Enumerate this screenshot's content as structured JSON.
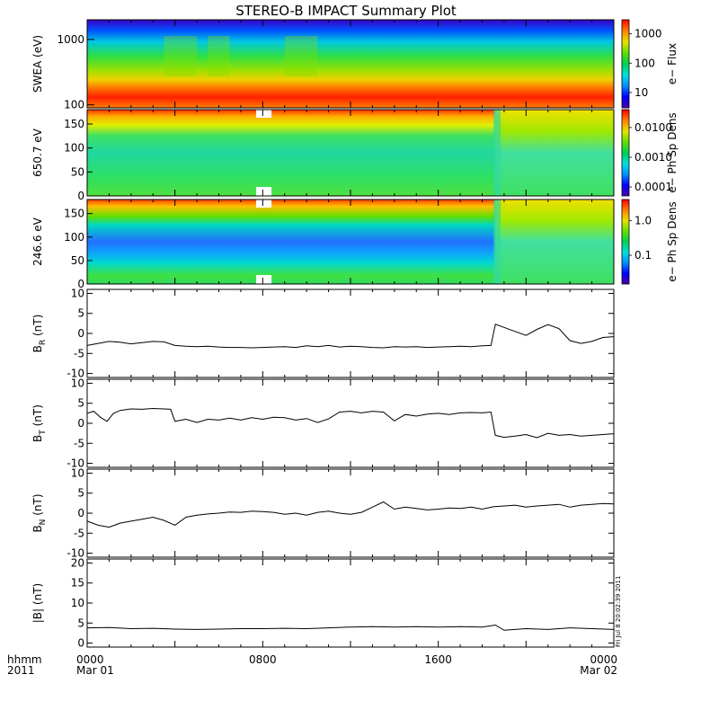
{
  "title": "STEREO-B IMPACT Summary Plot",
  "colors": {
    "axis": "#000000",
    "trace": "#000000",
    "background": "#ffffff"
  },
  "footer": {
    "left_line1": "hhmm",
    "left_line2": "2011",
    "x_ticks": [
      {
        "label": "0000",
        "sub": "Mar 01",
        "hour": 0
      },
      {
        "label": "0800",
        "sub": "",
        "hour": 8
      },
      {
        "label": "1600",
        "sub": "",
        "hour": 16
      },
      {
        "label": "0000",
        "sub": "Mar 02",
        "hour": 24
      }
    ]
  },
  "timestamp": "Fri Jul 8 20:02:39 2011",
  "chart_data": [
    {
      "type": "heatmap",
      "name": "swea",
      "ylabel": "SWEA (eV)",
      "yscale": "log",
      "ylim": [
        90,
        2000
      ],
      "y_ticks": [
        "100",
        "1000"
      ],
      "colorbar_label": "e− Flux",
      "colorbar_ticks": [
        "10",
        "100",
        "1000"
      ],
      "colorbar_scale": "log",
      "colorbar_range": [
        3,
        3000
      ]
    },
    {
      "type": "heatmap",
      "name": "pad650",
      "ylabel": "650.7 eV",
      "ylim": [
        0,
        180
      ],
      "y_ticks": [
        "0",
        "50",
        "100",
        "150"
      ],
      "colorbar_label": "e− Ph Sp Dens",
      "colorbar_ticks": [
        "0.0001",
        "0.0010",
        "0.0100"
      ],
      "colorbar_scale": "log",
      "colorbar_range": [
        5e-05,
        0.04
      ],
      "data_gaps_hours": [
        [
          7.7,
          8.4
        ]
      ],
      "transition_hour": 18.6
    },
    {
      "type": "heatmap",
      "name": "pad246",
      "ylabel": "246.6 eV",
      "ylim": [
        0,
        180
      ],
      "y_ticks": [
        "0",
        "50",
        "100",
        "150"
      ],
      "colorbar_label": "e− Ph Sp Dens",
      "colorbar_ticks": [
        "0.1",
        "1.0"
      ],
      "colorbar_scale": "log",
      "colorbar_range": [
        0.015,
        4
      ],
      "data_gaps_hours": [
        [
          7.7,
          8.4
        ]
      ],
      "transition_hour": 18.6
    },
    {
      "type": "line",
      "name": "br",
      "ylabel_main": "B",
      "ylabel_sub": "R",
      "ylabel_unit": " (nT)",
      "ylim": [
        -11,
        11
      ],
      "y_ticks": [
        "-10",
        "-5",
        "0",
        "5",
        "10"
      ],
      "y_tick_values": [
        -10,
        -5,
        0,
        5,
        10
      ],
      "x": [
        0,
        0.5,
        1,
        1.5,
        2,
        2.5,
        3,
        3.5,
        4,
        4.5,
        5,
        5.5,
        6,
        6.5,
        7,
        7.5,
        8,
        8.5,
        9,
        9.5,
        10,
        10.5,
        11,
        11.5,
        12,
        12.5,
        13,
        13.5,
        14,
        14.5,
        15,
        15.5,
        16,
        16.5,
        17,
        17.5,
        18,
        18.4,
        18.6,
        19,
        19.5,
        20,
        20.5,
        21,
        21.5,
        22,
        22.5,
        23,
        23.5,
        24
      ],
      "y": [
        -3,
        -2.5,
        -2,
        -2.2,
        -2.6,
        -2.3,
        -2,
        -2.1,
        -3,
        -3.2,
        -3.3,
        -3.2,
        -3.4,
        -3.5,
        -3.5,
        -3.6,
        -3.5,
        -3.4,
        -3.3,
        -3.5,
        -3.1,
        -3.3,
        -3.0,
        -3.4,
        -3.2,
        -3.3,
        -3.5,
        -3.6,
        -3.3,
        -3.4,
        -3.3,
        -3.5,
        -3.4,
        -3.3,
        -3.2,
        -3.3,
        -3.1,
        -3.0,
        2.3,
        1.5,
        0.5,
        -0.5,
        1.0,
        2.2,
        1.2,
        -1.8,
        -2.5,
        -2.0,
        -1.0,
        -0.8
      ]
    },
    {
      "type": "line",
      "name": "bt",
      "ylabel_main": "B",
      "ylabel_sub": "T",
      "ylabel_unit": " (nT)",
      "ylim": [
        -11,
        11
      ],
      "y_ticks": [
        "-10",
        "-5",
        "0",
        "5",
        "10"
      ],
      "y_tick_values": [
        -10,
        -5,
        0,
        5,
        10
      ],
      "x": [
        0,
        0.3,
        0.6,
        0.9,
        1.2,
        1.5,
        2,
        2.5,
        3,
        3.5,
        3.8,
        4,
        4.5,
        5,
        5.5,
        6,
        6.5,
        7,
        7.5,
        8,
        8.5,
        9,
        9.5,
        10,
        10.5,
        11,
        11.5,
        12,
        12.5,
        13,
        13.5,
        14,
        14.5,
        15,
        15.5,
        16,
        16.5,
        17,
        17.5,
        18,
        18.4,
        18.6,
        19,
        19.5,
        20,
        20.5,
        21,
        21.5,
        22,
        22.5,
        23,
        23.5,
        24
      ],
      "y": [
        2.5,
        3,
        1.5,
        0.5,
        2.5,
        3.2,
        3.6,
        3.5,
        3.7,
        3.6,
        3.5,
        0.5,
        1.0,
        0.2,
        1.0,
        0.8,
        1.3,
        0.8,
        1.4,
        1.0,
        1.5,
        1.4,
        0.8,
        1.2,
        0.2,
        1.1,
        2.8,
        3.0,
        2.6,
        3.0,
        2.8,
        0.6,
        2.2,
        1.8,
        2.3,
        2.5,
        2.2,
        2.6,
        2.7,
        2.6,
        2.8,
        -3.0,
        -3.5,
        -3.2,
        -2.8,
        -3.6,
        -2.5,
        -3.0,
        -2.8,
        -3.2,
        -3.0,
        -2.8,
        -2.6
      ]
    },
    {
      "type": "line",
      "name": "bn",
      "ylabel_main": "B",
      "ylabel_sub": "N",
      "ylabel_unit": " (nT)",
      "ylim": [
        -11,
        11
      ],
      "y_ticks": [
        "-10",
        "-5",
        "0",
        "5",
        "10"
      ],
      "y_tick_values": [
        -10,
        -5,
        0,
        5,
        10
      ],
      "x": [
        0,
        0.5,
        1,
        1.5,
        2,
        2.5,
        3,
        3.5,
        4,
        4.5,
        5,
        5.5,
        6,
        6.5,
        7,
        7.5,
        8,
        8.5,
        9,
        9.5,
        10,
        10.5,
        11,
        11.5,
        12,
        12.5,
        13,
        13.5,
        14,
        14.5,
        15,
        15.5,
        16,
        16.5,
        17,
        17.5,
        18,
        18.5,
        19,
        19.5,
        20,
        20.5,
        21,
        21.5,
        22,
        22.5,
        23,
        23.5,
        24
      ],
      "y": [
        -2,
        -3,
        -3.5,
        -2.5,
        -2,
        -1.5,
        -1,
        -1.8,
        -3,
        -1,
        -0.5,
        -0.2,
        0,
        0.3,
        0.2,
        0.5,
        0.4,
        0.2,
        -0.3,
        0,
        -0.5,
        0.2,
        0.5,
        0,
        -0.3,
        0.2,
        1.5,
        2.8,
        1.0,
        1.5,
        1.2,
        0.8,
        1.0,
        1.3,
        1.2,
        1.5,
        1.0,
        1.6,
        1.8,
        2.0,
        1.5,
        1.8,
        2.0,
        2.2,
        1.5,
        2.0,
        2.2,
        2.4,
        2.3
      ]
    },
    {
      "type": "line",
      "name": "bmag",
      "ylabel_main": "|B|",
      "ylabel_sub": "",
      "ylabel_unit": " (nT)",
      "ylim": [
        -1,
        21
      ],
      "y_ticks": [
        "0",
        "5",
        "10",
        "15",
        "20"
      ],
      "y_tick_values": [
        0,
        5,
        10,
        15,
        20
      ],
      "x": [
        0,
        1,
        2,
        3,
        4,
        5,
        6,
        7,
        8,
        9,
        10,
        11,
        12,
        13,
        14,
        15,
        16,
        17,
        18,
        18.6,
        19,
        20,
        21,
        22,
        23,
        24
      ],
      "y": [
        3.8,
        3.9,
        3.6,
        3.7,
        3.5,
        3.4,
        3.5,
        3.6,
        3.6,
        3.7,
        3.6,
        3.8,
        4.0,
        4.1,
        4.0,
        4.1,
        4.0,
        4.1,
        4.0,
        4.5,
        3.2,
        3.6,
        3.4,
        3.8,
        3.6,
        3.4
      ]
    }
  ]
}
